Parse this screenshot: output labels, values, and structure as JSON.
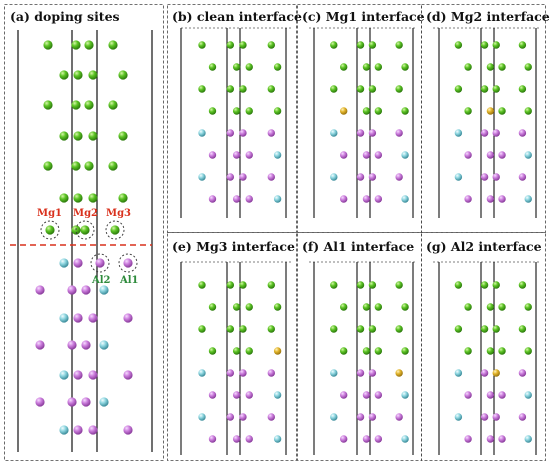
{
  "panels": [
    {
      "id": "a",
      "label": "(a) doping sites"
    },
    {
      "id": "b",
      "label": "(b) clean interface"
    },
    {
      "id": "c",
      "label": "(c) Mg1 interface"
    },
    {
      "id": "d",
      "label": "(d) Mg2 interface"
    },
    {
      "id": "e",
      "label": "(e) Mg3 interface"
    },
    {
      "id": "f",
      "label": "(f) Al1 interface"
    },
    {
      "id": "g",
      "label": "(g) Al2 interface"
    }
  ],
  "site_labels": {
    "mg1": "Mg1",
    "mg2": "Mg2",
    "mg3": "Mg3",
    "al1": "Al1",
    "al2": "Al2"
  },
  "colors": {
    "mg": "#58c424",
    "al": "#7fd0dc",
    "host": "#c777d9",
    "dopant": "#e0b62a",
    "boundary": "#d9301c",
    "red_label": "#d9301c",
    "green_label": "#2e8b3c"
  }
}
